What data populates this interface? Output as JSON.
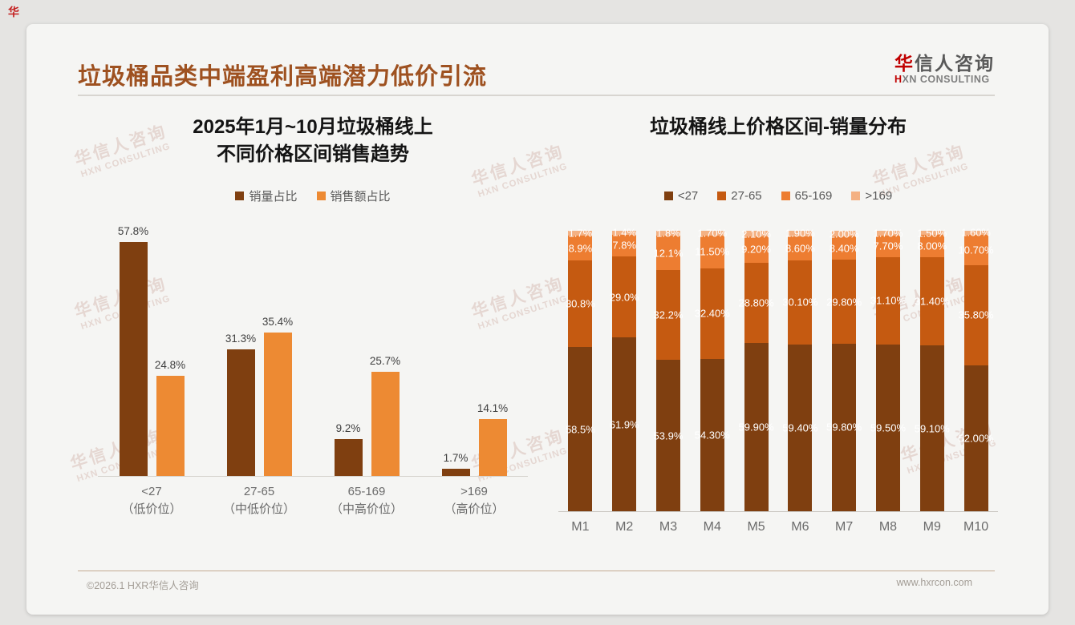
{
  "page": {
    "corner_mark": "华",
    "footer_left": "©2026.1 HXR华信人咨询",
    "footer_right": "www.hxrcon.com"
  },
  "header": {
    "title": "垃圾桶品类中端盈利高端潜力低价引流",
    "logo_cn_accent": "华",
    "logo_cn_rest": "信人咨询",
    "logo_en_accent": "H",
    "logo_en_rest": "XN CONSULTING"
  },
  "watermark": {
    "line1": "华信人咨询",
    "line2": "HXN CONSULTING"
  },
  "colors": {
    "title_brown": "#9e5120",
    "logo_red": "#c00000",
    "series_dark_brown": "#7f3f10",
    "series_orange": "#ed8a33",
    "stack_lt27": "#7f3f10",
    "stack_27_65": "#c55a11",
    "stack_65_169": "#ed7d31",
    "stack_gt169": "#f4b183",
    "card_bg": "#f5f5f3",
    "page_bg": "#e5e4e2"
  },
  "chart_data": [
    {
      "type": "bar",
      "title": "2025年1月~10月垃圾桶线上 不同价格区间销售趋势",
      "title_lines": [
        "2025年1月~10月垃圾桶线上",
        "不同价格区间销售趋势"
      ],
      "categories": [
        "<27",
        "27-65",
        "65-169",
        ">169"
      ],
      "category_sublabels": [
        "（低价位）",
        "（中低价位）",
        "（中高价位）",
        "（高价位）"
      ],
      "series": [
        {
          "name": "销量占比",
          "color": "#7f3f10",
          "values": [
            57.8,
            31.3,
            9.2,
            1.7
          ],
          "labels": [
            "57.8%",
            "31.3%",
            "9.2%",
            "1.7%"
          ]
        },
        {
          "name": "销售额占比",
          "color": "#ed8a33",
          "values": [
            24.8,
            35.4,
            25.7,
            14.1
          ],
          "labels": [
            "24.8%",
            "35.4%",
            "25.7%",
            "14.1%"
          ]
        }
      ],
      "ylim": [
        0,
        60
      ],
      "grid": false,
      "legend_position": "top",
      "value_labels": true
    },
    {
      "type": "bar",
      "stacked": true,
      "title": "垃圾桶线上价格区间-销量分布",
      "title_lines": [
        "垃圾桶线上价格区间-销量分布"
      ],
      "categories": [
        "M1",
        "M2",
        "M3",
        "M4",
        "M5",
        "M6",
        "M7",
        "M8",
        "M9",
        "M10"
      ],
      "series": [
        {
          "name": "<27",
          "color": "#7f3f10",
          "values": [
            58.5,
            61.9,
            53.9,
            54.3,
            59.9,
            59.4,
            59.8,
            59.5,
            59.1,
            52.0
          ],
          "labels": [
            "58.5%",
            "61.9%",
            "53.9%",
            "54.30%",
            "59.90%",
            "59.40%",
            "59.80%",
            "59.50%",
            "59.10%",
            "52.00%"
          ]
        },
        {
          "name": "27-65",
          "color": "#c55a11",
          "values": [
            30.8,
            29.0,
            32.2,
            32.4,
            28.8,
            30.1,
            29.8,
            31.1,
            31.4,
            35.8
          ],
          "labels": [
            "30.8%",
            "29.0%",
            "32.2%",
            "32.40%",
            "28.80%",
            "30.10%",
            "29.80%",
            "31.10%",
            "31.40%",
            "35.80%"
          ]
        },
        {
          "name": "65-169",
          "color": "#ed7d31",
          "values": [
            8.9,
            7.8,
            12.1,
            11.5,
            9.2,
            8.6,
            8.4,
            7.7,
            8.0,
            10.7
          ],
          "labels": [
            "8.9%",
            "7.8%",
            "12.1%",
            "11.50%",
            "9.20%",
            "8.60%",
            "8.40%",
            "7.70%",
            "8.00%",
            "10.70%"
          ]
        },
        {
          "name": ">169",
          "color": "#f4b183",
          "values": [
            1.7,
            1.4,
            1.8,
            1.7,
            2.1,
            1.9,
            2.0,
            1.7,
            1.5,
            1.6
          ],
          "labels": [
            "1.7%",
            "1.4%",
            "1.8%",
            "1.70%",
            "2.10%",
            "1.90%",
            "2.00%",
            "1.70%",
            "1.50%",
            "1.60%"
          ]
        }
      ],
      "ylim": [
        0,
        100
      ],
      "grid": false,
      "legend_position": "top",
      "value_labels": true
    }
  ]
}
